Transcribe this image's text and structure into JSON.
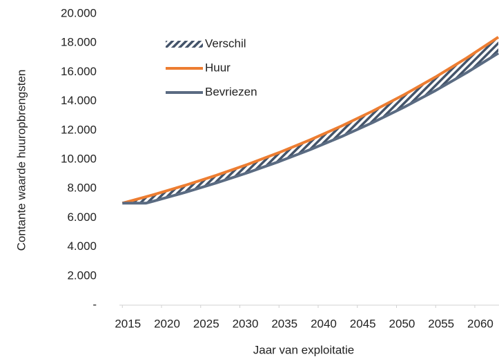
{
  "chart_data": {
    "type": "line",
    "x_label": "Jaar van exploitatie",
    "y_label": "Contante waarde huuropbrengsten",
    "x": [
      2015,
      2018,
      2019,
      2023,
      2027,
      2031,
      2035,
      2039,
      2043,
      2047,
      2051,
      2055,
      2059,
      2063
    ],
    "series": [
      {
        "name": "Verschil",
        "color": "#44546a",
        "fill": "hatch",
        "stacked_on": "Bevriezen",
        "values": [
          0,
          436,
          445,
          486,
          524,
          568,
          617,
          670,
          727,
          789,
          856,
          930,
          1009,
          1100
        ]
      },
      {
        "name": "Huur",
        "color": "#ed7d31",
        "values": [
          7000,
          7436,
          7587,
          8224,
          8914,
          9662,
          10472,
          11350,
          12302,
          13335,
          14454,
          15667,
          16981,
          18400
        ]
      },
      {
        "name": "Bevriezen",
        "color": "#5a6b82",
        "values": [
          7000,
          7000,
          7142,
          7738,
          8390,
          9094,
          9855,
          10680,
          11575,
          12546,
          13598,
          14737,
          15972,
          17300
        ]
      }
    ],
    "xlim": [
      2014.8,
      2063
    ],
    "xticks": [
      2015,
      2020,
      2025,
      2030,
      2035,
      2040,
      2045,
      2050,
      2055,
      2060
    ],
    "ylim": [
      0,
      20000
    ],
    "yticks": [
      {
        "value": 0,
        "label": "-"
      },
      {
        "value": 2000,
        "label": "2.000"
      },
      {
        "value": 4000,
        "label": "4.000"
      },
      {
        "value": 6000,
        "label": "6.000"
      },
      {
        "value": 8000,
        "label": "8.000"
      },
      {
        "value": 10000,
        "label": "10.000"
      },
      {
        "value": 12000,
        "label": "12.000"
      },
      {
        "value": 14000,
        "label": "14.000"
      },
      {
        "value": 16000,
        "label": "16.000"
      },
      {
        "value": 18000,
        "label": "18.000"
      },
      {
        "value": 20000,
        "label": "20.000"
      }
    ],
    "grid": false,
    "legend": "upper left"
  }
}
